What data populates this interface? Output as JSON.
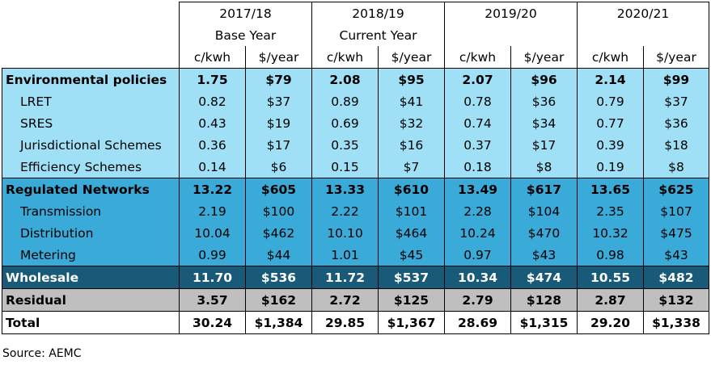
{
  "header": {
    "years": [
      {
        "year": "2017/18",
        "subtitle": "Base Year"
      },
      {
        "year": "2018/19",
        "subtitle": "Current Year"
      },
      {
        "year": "2019/20",
        "subtitle": ""
      },
      {
        "year": "2020/21",
        "subtitle": ""
      }
    ],
    "unit_c": "c/kwh",
    "unit_d": "$/year"
  },
  "rows": [
    {
      "label": "Environmental policies",
      "values": [
        "1.75",
        "$79",
        "2.08",
        "$95",
        "2.07",
        "$96",
        "2.14",
        "$99"
      ]
    },
    {
      "label": "LRET",
      "values": [
        "0.82",
        "$37",
        "0.89",
        "$41",
        "0.78",
        "$36",
        "0.79",
        "$37"
      ]
    },
    {
      "label": "SRES",
      "values": [
        "0.43",
        "$19",
        "0.69",
        "$32",
        "0.74",
        "$34",
        "0.77",
        "$36"
      ]
    },
    {
      "label": "Jurisdictional Schemes",
      "values": [
        "0.36",
        "$17",
        "0.35",
        "$16",
        "0.37",
        "$17",
        "0.39",
        "$18"
      ]
    },
    {
      "label": "Efficiency Schemes",
      "values": [
        "0.14",
        "$6",
        "0.15",
        "$7",
        "0.18",
        "$8",
        "0.19",
        "$8"
      ]
    },
    {
      "label": "Regulated Networks",
      "values": [
        "13.22",
        "$605",
        "13.33",
        "$610",
        "13.49",
        "$617",
        "13.65",
        "$625"
      ]
    },
    {
      "label": "Transmission",
      "values": [
        "2.19",
        "$100",
        "2.22",
        "$101",
        "2.28",
        "$104",
        "2.35",
        "$107"
      ]
    },
    {
      "label": "Distribution",
      "values": [
        "10.04",
        "$462",
        "10.10",
        "$464",
        "10.24",
        "$470",
        "10.32",
        "$475"
      ]
    },
    {
      "label": "Metering",
      "values": [
        "0.99",
        "$44",
        "1.01",
        "$45",
        "0.97",
        "$43",
        "0.98",
        "$43"
      ]
    },
    {
      "label": "Wholesale",
      "values": [
        "11.70",
        "$536",
        "11.72",
        "$537",
        "10.34",
        "$474",
        "10.55",
        "$482"
      ]
    },
    {
      "label": "Residual",
      "values": [
        "3.57",
        "$162",
        "2.72",
        "$125",
        "2.79",
        "$128",
        "2.87",
        "$132"
      ]
    },
    {
      "label": "Total",
      "values": [
        "30.24",
        "$1,384",
        "29.85",
        "$1,367",
        "28.69",
        "$1,315",
        "29.20",
        "$1,338"
      ]
    }
  ],
  "source": "Source: AEMC"
}
